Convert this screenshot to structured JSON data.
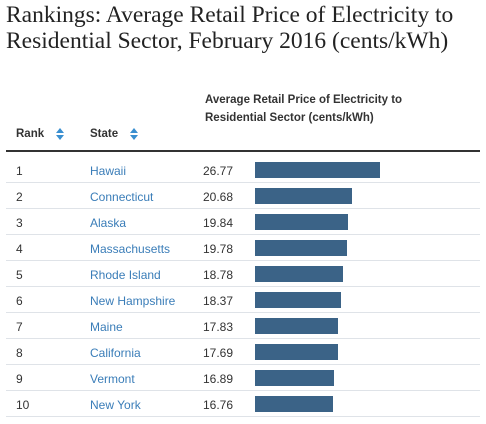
{
  "page": {
    "title": "Rankings: Average Retail Price of Electricity to Residential Sector, February 2016 (cents/kWh)"
  },
  "table": {
    "headers": {
      "rank": "Rank",
      "state": "State",
      "price": "Average Retail Price of Electricity to Residential Sector (cents/kWh)"
    },
    "bar_color": "#3b6387",
    "link_color": "#3a7db8",
    "max_value": 26.77,
    "rows": [
      {
        "rank": "1",
        "state": "Hawaii",
        "value": "26.77"
      },
      {
        "rank": "2",
        "state": "Connecticut",
        "value": "20.68"
      },
      {
        "rank": "3",
        "state": "Alaska",
        "value": "19.84"
      },
      {
        "rank": "4",
        "state": "Massachusetts",
        "value": "19.78"
      },
      {
        "rank": "5",
        "state": "Rhode Island",
        "value": "18.78"
      },
      {
        "rank": "6",
        "state": "New Hampshire",
        "value": "18.37"
      },
      {
        "rank": "7",
        "state": "Maine",
        "value": "17.83"
      },
      {
        "rank": "8",
        "state": "California",
        "value": "17.69"
      },
      {
        "rank": "9",
        "state": "Vermont",
        "value": "16.89"
      },
      {
        "rank": "10",
        "state": "New York",
        "value": "16.76"
      }
    ]
  }
}
